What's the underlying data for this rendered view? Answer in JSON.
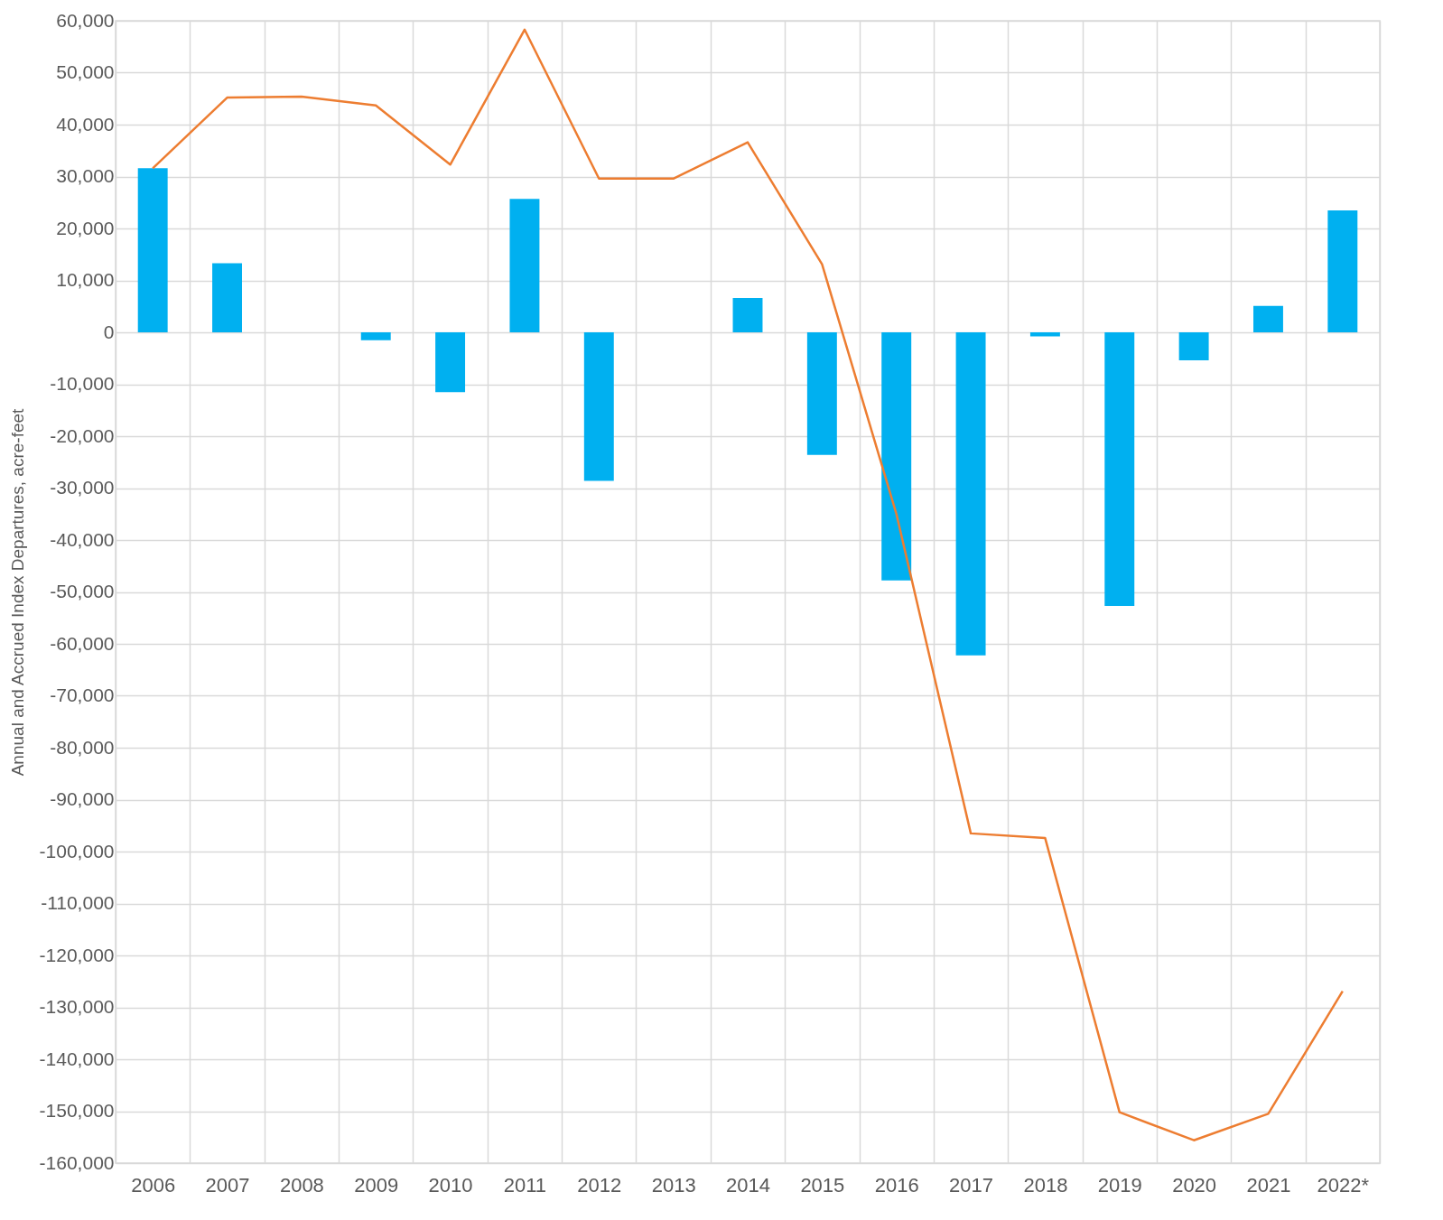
{
  "chart_data": {
    "type": "bar",
    "ylabel": "Annual and Accrued Index Departures, acre-feet",
    "categories": [
      "2006",
      "2007",
      "2008",
      "2009",
      "2010",
      "2011",
      "2012",
      "2013",
      "2014",
      "2015",
      "2016",
      "2017",
      "2018",
      "2019",
      "2020",
      "2021",
      "2022*"
    ],
    "series": [
      {
        "color": "#00b0f0",
        "values": [
          31600,
          13300,
          0,
          -1500,
          -11500,
          25700,
          -28600,
          0,
          6600,
          -23600,
          -47800,
          -62200,
          -800,
          -52700,
          -5400,
          5100,
          23500
        ]
      },
      {
        "type": "line",
        "color": "#ed7d31",
        "values": [
          31600,
          45200,
          45400,
          43700,
          32300,
          58300,
          29600,
          29600,
          36600,
          13100,
          -35000,
          -96500,
          -97400,
          -150200,
          -155600,
          -150500,
          -126900
        ]
      }
    ],
    "ylim": [
      -160000,
      60000
    ],
    "yticks": [
      {
        "value": 60000,
        "label": "60,000"
      },
      {
        "value": 50000,
        "label": "50,000"
      },
      {
        "value": 40000,
        "label": "40,000"
      },
      {
        "value": 30000,
        "label": "30,000"
      },
      {
        "value": 20000,
        "label": "20,000"
      },
      {
        "value": 10000,
        "label": "10,000"
      },
      {
        "value": 0,
        "label": "0"
      },
      {
        "value": -10000,
        "label": "-10,000"
      },
      {
        "value": -20000,
        "label": "-20,000"
      },
      {
        "value": -30000,
        "label": "-30,000"
      },
      {
        "value": -40000,
        "label": "-40,000"
      },
      {
        "value": -50000,
        "label": "-50,000"
      },
      {
        "value": -60000,
        "label": "-60,000"
      },
      {
        "value": -70000,
        "label": "-70,000"
      },
      {
        "value": -80000,
        "label": "-80,000"
      },
      {
        "value": -90000,
        "label": "-90,000"
      },
      {
        "value": -100000,
        "label": "-100,000"
      },
      {
        "value": -110000,
        "label": "-110,000"
      },
      {
        "value": -120000,
        "label": "-120,000"
      },
      {
        "value": -130000,
        "label": "-130,000"
      },
      {
        "value": -140000,
        "label": "-140,000"
      },
      {
        "value": -150000,
        "label": "-150,000"
      },
      {
        "value": -160000,
        "label": "-160,000"
      }
    ],
    "grid": true
  }
}
